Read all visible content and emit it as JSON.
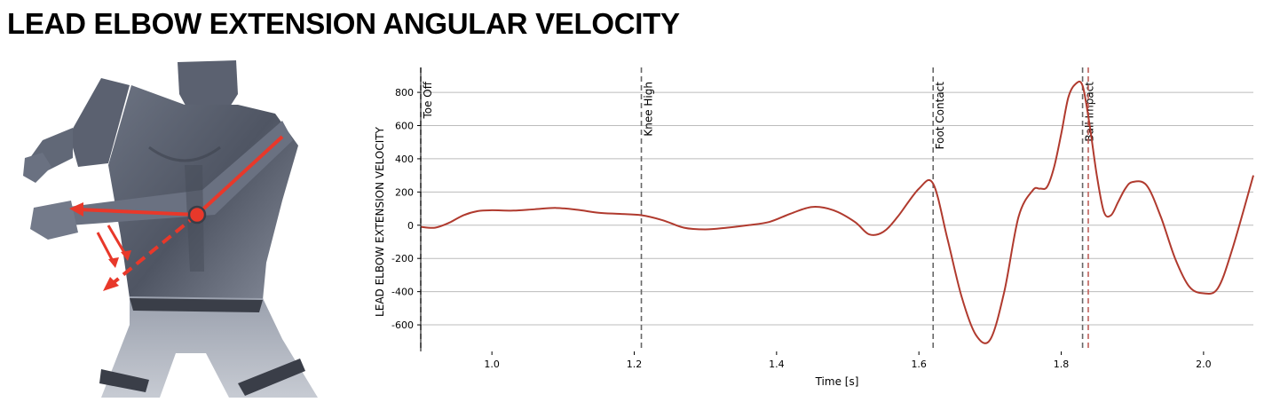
{
  "header": {
    "title": "LEAD ELBOW EXTENSION ANGULAR VELOCITY"
  },
  "colors": {
    "curve": "#b03a2e",
    "ball_impact_line": "#c0615b",
    "event_line": "#666666",
    "gridline": "#bcbcbc",
    "arrow": "#e8382a",
    "figure_skin": "#59606e"
  },
  "icons": {
    "athlete_illustration": "athlete-torso-elbow-extension-illustration"
  },
  "chart_data": {
    "type": "line",
    "title": "",
    "xlabel": "Time [s]",
    "ylabel": "LEAD ELBOW EXTENSION VELOCITY",
    "xlim": [
      0.9,
      2.07
    ],
    "ylim": [
      -760,
      950
    ],
    "grid": "horizontal",
    "xticks": [
      1.0,
      1.2,
      1.4,
      1.6,
      1.8,
      2.0
    ],
    "xtick_labels": [
      "1.0",
      "1.2",
      "1.4",
      "1.6",
      "1.8",
      "2.0"
    ],
    "yticks": [
      800,
      600,
      400,
      200,
      0,
      -200,
      -400,
      -600
    ],
    "ytick_labels": [
      "800",
      "600",
      "400",
      "200",
      "0",
      "-200",
      "-400",
      "-600"
    ],
    "events": [
      {
        "label": "Toe Off",
        "x": 0.9
      },
      {
        "label": "Knee High",
        "x": 1.21
      },
      {
        "label": "Foot Contact",
        "x": 1.62
      },
      {
        "label": "Ball Impact",
        "x": 1.83
      }
    ],
    "ball_impact_release_x": 1.838,
    "series": [
      {
        "x": [
          0.9,
          0.92,
          0.94,
          0.96,
          0.98,
          1.0,
          1.03,
          1.06,
          1.09,
          1.12,
          1.15,
          1.18,
          1.21,
          1.24,
          1.27,
          1.3,
          1.33,
          1.36,
          1.39,
          1.42,
          1.45,
          1.48,
          1.51,
          1.53,
          1.55,
          1.57,
          1.6,
          1.62,
          1.64,
          1.66,
          1.68,
          1.7,
          1.72,
          1.74,
          1.76,
          1.77,
          1.78,
          1.79,
          1.8,
          1.81,
          1.82,
          1.83,
          1.84,
          1.85,
          1.86,
          1.87,
          1.88,
          1.89,
          1.9,
          1.92,
          1.94,
          1.96,
          1.98,
          2.0,
          2.02,
          2.04,
          2.07
        ],
        "y": [
          -10,
          -15,
          15,
          60,
          85,
          90,
          88,
          96,
          104,
          93,
          75,
          68,
          60,
          30,
          -15,
          -25,
          -15,
          0,
          20,
          70,
          110,
          90,
          20,
          -55,
          -40,
          50,
          220,
          250,
          -80,
          -430,
          -660,
          -690,
          -400,
          50,
          210,
          220,
          230,
          350,
          550,
          770,
          850,
          840,
          600,
          300,
          80,
          60,
          140,
          220,
          260,
          240,
          50,
          -200,
          -370,
          -410,
          -380,
          -150,
          300
        ]
      }
    ]
  }
}
